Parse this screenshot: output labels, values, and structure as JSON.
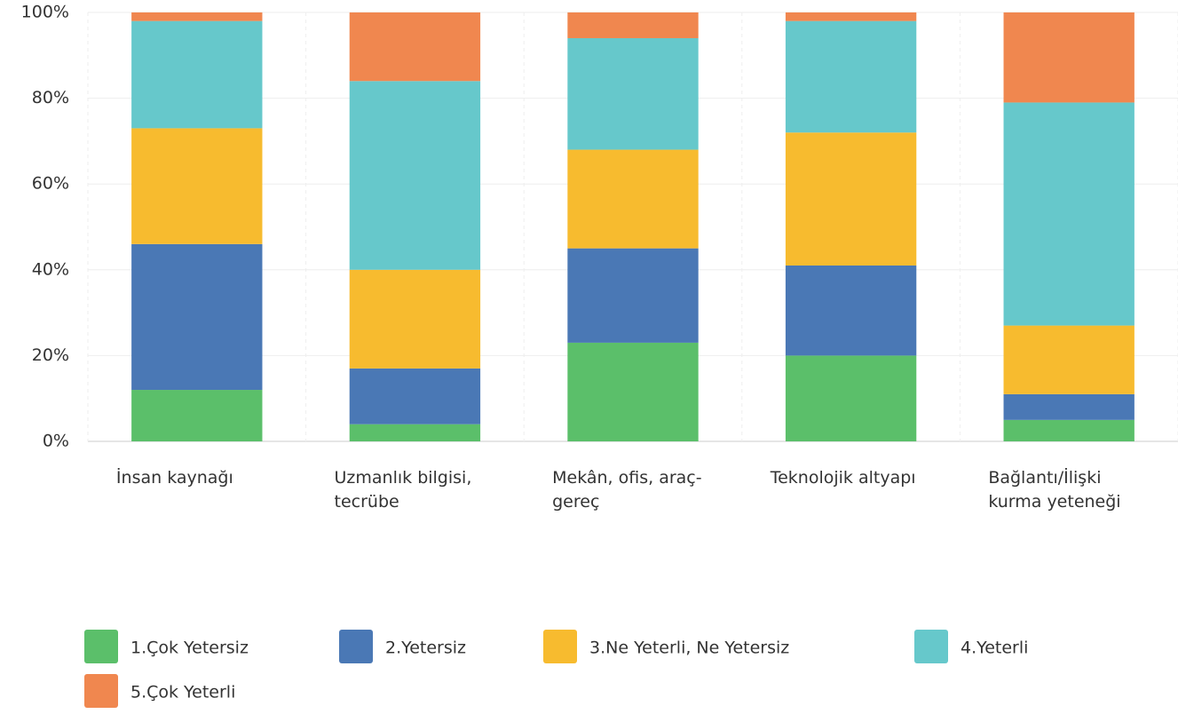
{
  "chart_data": {
    "type": "stacked_bar",
    "categories": [
      "İnsan kaynağı",
      "Uzmanlık bilgisi, tecrübe",
      "Mekân, ofis, araç-gereç",
      "Teknolojik altyapı",
      "Bağlantı/İlişki kurma yeteneği"
    ],
    "series": [
      {
        "name": "1.Çok Yetersiz",
        "color": "#5bbf6a",
        "values": [
          12,
          4,
          23,
          20,
          5
        ]
      },
      {
        "name": "2.Yetersiz",
        "color": "#4a78b5",
        "values": [
          34,
          13,
          22,
          21,
          6
        ]
      },
      {
        "name": "3.Ne Yeterli, Ne Yetersiz",
        "color": "#f7bb2f",
        "values": [
          27,
          23,
          23,
          31,
          16
        ]
      },
      {
        "name": "4.Yeterli",
        "color": "#66c8cb",
        "values": [
          25,
          44,
          26,
          26,
          52
        ]
      },
      {
        "name": "5.Çok  Yeterli",
        "color": "#f0874f",
        "values": [
          2,
          16,
          6,
          2,
          21
        ]
      }
    ],
    "ylim": [
      0,
      100
    ],
    "yticks": [
      {
        "value": 0,
        "label": "0%"
      },
      {
        "value": 20,
        "label": "20%"
      },
      {
        "value": 40,
        "label": "40%"
      },
      {
        "value": 60,
        "label": "60%"
      },
      {
        "value": 80,
        "label": "80%"
      },
      {
        "value": 100,
        "label": "100%"
      }
    ],
    "grid": true
  }
}
